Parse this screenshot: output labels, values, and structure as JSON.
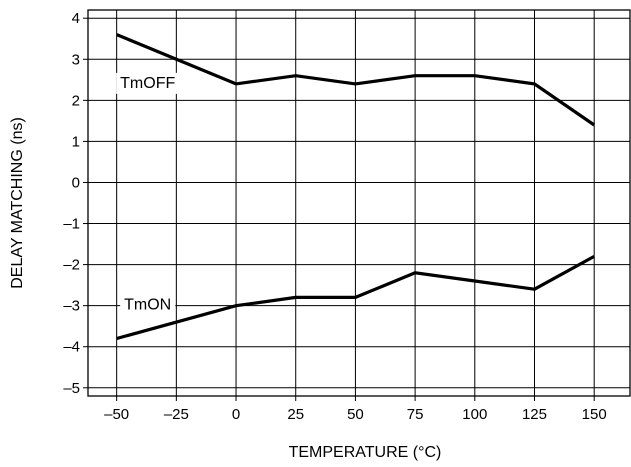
{
  "chart_data": {
    "type": "line",
    "title": "",
    "xlabel": "TEMPERATURE (°C)",
    "ylabel": "DELAY MATCHING (ns)",
    "x": [
      -50,
      0,
      25,
      50,
      75,
      100,
      125,
      150
    ],
    "xticks": [
      -50,
      -25,
      0,
      25,
      50,
      75,
      100,
      125,
      150
    ],
    "xtick_labels": [
      "–50",
      "–25",
      "0",
      "25",
      "50",
      "75",
      "100",
      "125",
      "150"
    ],
    "yticks": [
      4,
      3,
      2,
      1,
      0,
      -1,
      -2,
      -3,
      -4,
      -5
    ],
    "ytick_labels": [
      "4",
      "3",
      "2",
      "1",
      "0",
      "–1",
      "–2",
      "–3",
      "–4",
      "–5"
    ],
    "xlim": [
      -62,
      165
    ],
    "ylim": [
      -5.2,
      4.2
    ],
    "grid": true,
    "series": [
      {
        "name": "TmOFF",
        "x": [
          -50,
          0,
          25,
          50,
          75,
          100,
          125,
          150
        ],
        "values": [
          3.6,
          2.4,
          2.6,
          2.4,
          2.6,
          2.6,
          2.4,
          1.4
        ]
      },
      {
        "name": "TmON",
        "x": [
          -50,
          0,
          25,
          50,
          75,
          100,
          125,
          150
        ],
        "values": [
          -3.8,
          -3.0,
          -2.8,
          -2.8,
          -2.2,
          -2.4,
          -2.6,
          -1.8
        ]
      }
    ]
  }
}
